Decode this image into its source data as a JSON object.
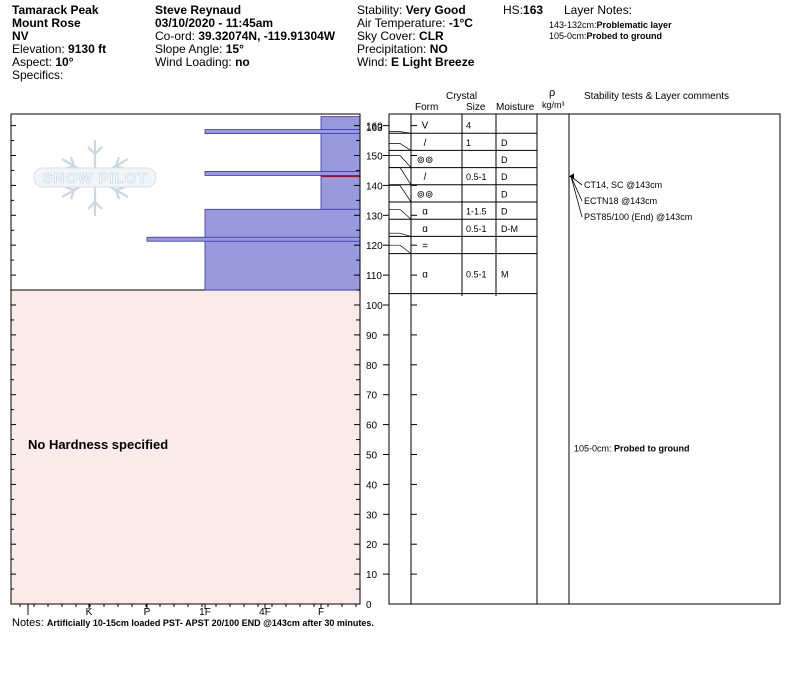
{
  "site": {
    "location": "Tamarack Peak",
    "area": "Mount Rose",
    "state": "NV",
    "elevation_label": "Elevation:",
    "elevation": "9130 ft",
    "aspect_label": "Aspect:",
    "aspect": "10°",
    "specifics_label": "Specifics:"
  },
  "observer": {
    "name": "Steve Reynaud",
    "datetime": "03/10/2020 - 11:45am",
    "coord_label": "Co-ord:",
    "coord": "39.32074N, -119.91304W",
    "slope_label": "Slope Angle:",
    "slope": "15°",
    "wind_loading_label": "Wind Loading:",
    "wind_loading": "no"
  },
  "conditions": {
    "stability_label": "Stability:",
    "stability": "Very Good",
    "air_temp_label": "Air Temperature:",
    "air_temp": "-1°C",
    "sky_label": "Sky Cover:",
    "sky": "CLR",
    "precip_label": "Precipitation:",
    "precip": "NO",
    "wind_label": "Wind:",
    "wind": "E Light Breeze"
  },
  "hs": {
    "label": "HS:",
    "value": "163"
  },
  "layer_notes": {
    "title": "Layer Notes:",
    "items": [
      {
        "range": "143-132cm:",
        "text": "Problematic layer"
      },
      {
        "range": "105-0cm:",
        "text": "Probed to ground"
      }
    ]
  },
  "table_headers": {
    "crystal": "Crystal",
    "form": "Form",
    "size": "Size",
    "moisture": "Moisture",
    "rho": "ρ",
    "density_unit": "kg/m³",
    "comments": "Stability tests & Layer comments"
  },
  "watermark": "SNOW PILOT",
  "no_hardness": "No Hardness specified",
  "notes": {
    "label": "Notes:",
    "text": "Artificially 10-15cm loaded PST- APST 20/100 END @143cm after 30 minutes."
  },
  "chart_data": {
    "type": "bar",
    "title": "",
    "xlabel": "",
    "ylabel": "",
    "y_unit": "cm",
    "ylim": [
      0,
      163
    ],
    "hardness_scale": [
      "I",
      "K",
      "P",
      "1F",
      "4F",
      "F"
    ],
    "depth_ticks": [
      0,
      10,
      20,
      30,
      40,
      50,
      60,
      70,
      80,
      90,
      100,
      110,
      120,
      130,
      140,
      150,
      160
    ],
    "top_label": "163",
    "hardness_profile": [
      {
        "top": 163,
        "bottom": 143,
        "hardness": "F"
      },
      {
        "top": 143,
        "bottom": 132,
        "hardness": "F"
      },
      {
        "top": 132,
        "bottom": 105,
        "hardness": "1F"
      }
    ],
    "thin_layers": [
      {
        "depth": 158,
        "hardness": "1F"
      },
      {
        "depth": 144,
        "hardness": "1F"
      },
      {
        "depth": 122,
        "hardness": "P"
      }
    ],
    "no_data_range": [
      0,
      105
    ],
    "layers": [
      {
        "top": 163,
        "bottom": 158,
        "form": "V",
        "size": "4",
        "moisture": ""
      },
      {
        "top": 158,
        "bottom": 154,
        "form": "/",
        "size": "1",
        "moisture": "D"
      },
      {
        "top": 154,
        "bottom": 150,
        "form": "⊚⊚",
        "size": "",
        "moisture": "D"
      },
      {
        "top": 150,
        "bottom": 146,
        "form": "/",
        "size": "0.5-1",
        "moisture": "D"
      },
      {
        "top": 146,
        "bottom": 140,
        "form": "⊚⊚",
        "size": "",
        "moisture": "D"
      },
      {
        "top": 140,
        "bottom": 132,
        "form": "ɑ",
        "size": "1-1.5",
        "moisture": "D"
      },
      {
        "top": 132,
        "bottom": 124,
        "form": "ɑ",
        "size": "0.5-1",
        "moisture": "D-M"
      },
      {
        "top": 124,
        "bottom": 120,
        "form": "=",
        "size": "",
        "moisture": ""
      },
      {
        "top": 120,
        "bottom": 105,
        "form": "ɑ",
        "size": "0.5-1",
        "moisture": "M"
      }
    ],
    "stability_tests": [
      {
        "text": "CT14, SC @143cm",
        "depth": 143
      },
      {
        "text": "ECTN18 @143cm",
        "depth": 143
      },
      {
        "text": "PST85/100 (End) @143cm",
        "depth": 143
      }
    ],
    "depth_comments": [
      {
        "range": "105-0cm:",
        "text": "Probed to ground",
        "depth": 52
      }
    ],
    "colors": {
      "profile": "#9999dd",
      "profile_edge": "#3333aa",
      "weak_layer": "#cc0000",
      "no_data": "#fbeaea"
    }
  }
}
